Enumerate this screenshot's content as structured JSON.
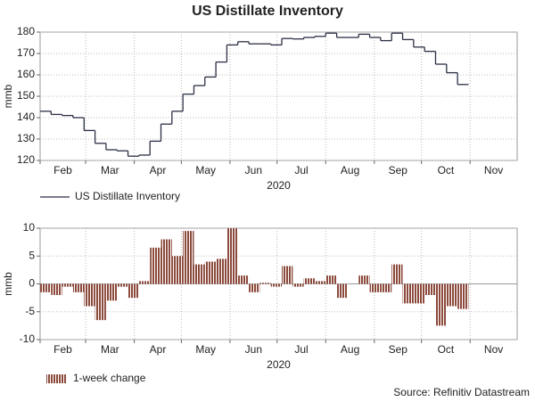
{
  "source": "Source: Refinitiv Datastream",
  "chart_data": [
    {
      "type": "line",
      "title": "US Distillate Inventory",
      "ylabel": "mmb",
      "xlabel": "2020",
      "step": true,
      "grid": true,
      "x": [
        32,
        39,
        46,
        53,
        60,
        67,
        74,
        81,
        88,
        95,
        102,
        109,
        116,
        123,
        130,
        137,
        144,
        151,
        158,
        165,
        172,
        179,
        186,
        193,
        200,
        207,
        214,
        221,
        228,
        235,
        242,
        249,
        256,
        263,
        270,
        277,
        284,
        291,
        298
      ],
      "series": [
        {
          "name": "US Distillate Inventory",
          "color": "#2b2f44",
          "values": [
            143,
            141.5,
            141,
            140,
            134,
            128,
            125,
            124.5,
            122,
            122.5,
            129,
            137,
            143,
            151,
            155,
            159,
            166,
            174,
            175.5,
            174.5,
            174.5,
            174,
            177,
            176.8,
            177.5,
            178,
            179.5,
            177.5,
            177.5,
            179,
            177.5,
            176,
            179.5,
            176.5,
            173,
            171,
            165,
            161,
            155.5
          ]
        }
      ],
      "xlim": [
        32,
        336
      ],
      "xticks": [
        {
          "value": 32,
          "label": "Feb"
        },
        {
          "value": 61,
          "label": "Mar"
        },
        {
          "value": 92,
          "label": "Apr"
        },
        {
          "value": 122,
          "label": "May"
        },
        {
          "value": 153,
          "label": "Jun"
        },
        {
          "value": 183,
          "label": "Jul"
        },
        {
          "value": 214,
          "label": "Aug"
        },
        {
          "value": 245,
          "label": "Sep"
        },
        {
          "value": 275,
          "label": "Oct"
        },
        {
          "value": 306,
          "label": "Nov"
        }
      ],
      "ylim": [
        120,
        180
      ],
      "yticks": [
        120,
        130,
        140,
        150,
        160,
        170,
        180
      ]
    },
    {
      "type": "bar",
      "ylabel": "mmb",
      "xlabel": "2020",
      "grid": true,
      "bar_width": 7,
      "x": [
        32,
        39,
        46,
        53,
        60,
        67,
        74,
        81,
        88,
        95,
        102,
        109,
        116,
        123,
        130,
        137,
        144,
        151,
        158,
        165,
        172,
        179,
        186,
        193,
        200,
        207,
        214,
        221,
        228,
        235,
        242,
        249,
        256,
        263,
        270,
        277,
        284,
        291,
        298
      ],
      "series": [
        {
          "name": "1-week change",
          "color": "#8b4a3c",
          "values": [
            -1.5,
            -2,
            -0.5,
            -1.5,
            -4,
            -6.5,
            -3,
            -0.5,
            -2.5,
            0.5,
            6.5,
            8,
            5,
            9.5,
            3.5,
            4,
            4.5,
            10,
            1.5,
            -1.5,
            0.2,
            -0.5,
            3.2,
            -0.5,
            1,
            0.5,
            1.5,
            -2.5,
            0,
            1.5,
            -1.5,
            -1.5,
            3.5,
            -3.5,
            -3.5,
            -2,
            -7.5,
            -4,
            -4.5
          ]
        }
      ],
      "xlim": [
        32,
        336
      ],
      "xticks": [
        {
          "value": 32,
          "label": "Feb"
        },
        {
          "value": 61,
          "label": "Mar"
        },
        {
          "value": 92,
          "label": "Apr"
        },
        {
          "value": 122,
          "label": "May"
        },
        {
          "value": 153,
          "label": "Jun"
        },
        {
          "value": 183,
          "label": "Jul"
        },
        {
          "value": 214,
          "label": "Aug"
        },
        {
          "value": 245,
          "label": "Sep"
        },
        {
          "value": 275,
          "label": "Oct"
        },
        {
          "value": 306,
          "label": "Nov"
        }
      ],
      "ylim": [
        -10,
        10
      ],
      "yticks": [
        -10,
        -5,
        0,
        5,
        10
      ]
    }
  ]
}
